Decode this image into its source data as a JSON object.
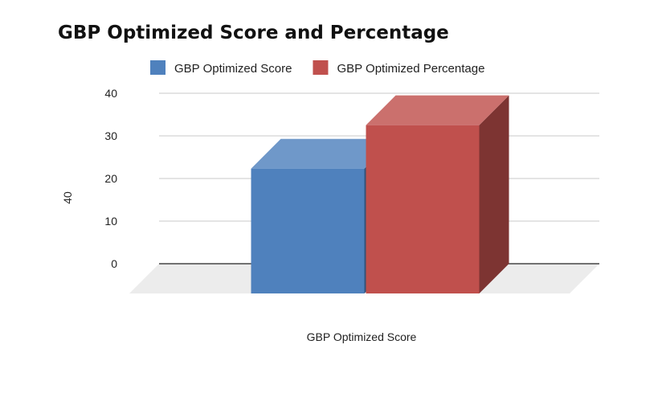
{
  "chart_data": {
    "type": "bar",
    "title": "GBP Optimized Score and Percentage",
    "categories": [
      "GBP Optimized Score"
    ],
    "series": [
      {
        "name": "GBP Optimized Score",
        "values": [
          29.3
        ],
        "color": "#4f81bd"
      },
      {
        "name": "GBP Optimized Percentage",
        "values": [
          39.5
        ],
        "color": "#c0504d"
      }
    ],
    "xlabel": "GBP Optimized Score",
    "ylabel": "40",
    "ylim": [
      0,
      40
    ],
    "yticks": [
      "0",
      "10",
      "20",
      "30",
      "40"
    ],
    "grid": true,
    "legend_position": "top",
    "style": "3d"
  }
}
